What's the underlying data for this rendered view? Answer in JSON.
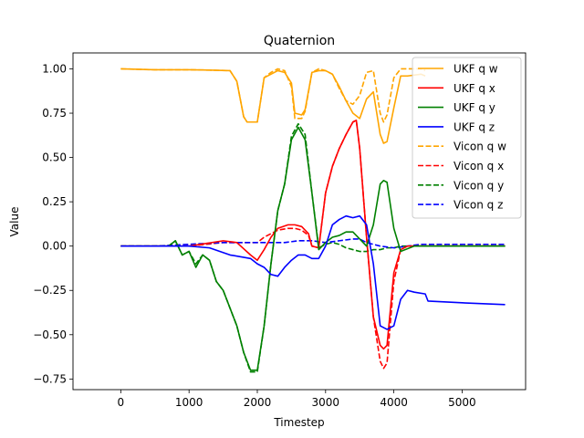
{
  "chart_data": {
    "type": "line",
    "title": "Quaternion",
    "xlabel": "Timestep",
    "ylabel": "Value",
    "xlim": [
      -700,
      5930
    ],
    "ylim": [
      -0.81,
      1.09
    ],
    "x_ticks": [
      0,
      1000,
      2000,
      3000,
      4000,
      5000
    ],
    "x_tick_labels": [
      "0",
      "1000",
      "2000",
      "3000",
      "4000",
      "5000"
    ],
    "y_ticks": [
      -0.75,
      -0.5,
      -0.25,
      0.0,
      0.25,
      0.5,
      0.75,
      1.0
    ],
    "y_tick_labels": [
      "−0.75",
      "−0.50",
      "−0.25",
      "0.00",
      "0.25",
      "0.50",
      "0.75",
      "1.00"
    ],
    "grid": false,
    "legend_position": "top-right",
    "series": [
      {
        "name": "UKF q w",
        "color": "#ffa500",
        "dash": false,
        "x": [
          0,
          500,
          1000,
          1300,
          1600,
          1700,
          1800,
          1850,
          1900,
          2000,
          2100,
          2200,
          2300,
          2400,
          2500,
          2550,
          2650,
          2700,
          2800,
          2900,
          3000,
          3100,
          3200,
          3300,
          3400,
          3500,
          3600,
          3700,
          3800,
          3850,
          3900,
          4000,
          4100,
          4200,
          4400,
          4460
        ],
        "y": [
          1.0,
          0.995,
          0.995,
          0.993,
          0.99,
          0.93,
          0.73,
          0.7,
          0.7,
          0.7,
          0.95,
          0.97,
          0.99,
          0.98,
          0.92,
          0.75,
          0.74,
          0.77,
          0.98,
          0.99,
          0.99,
          0.97,
          0.9,
          0.82,
          0.75,
          0.72,
          0.83,
          0.87,
          0.63,
          0.58,
          0.59,
          0.78,
          0.96,
          0.96,
          0.97,
          0.96
        ]
      },
      {
        "name": "UKF q x",
        "color": "#ff0000",
        "dash": false,
        "x": [
          0,
          500,
          1000,
          1500,
          1700,
          1900,
          2000,
          2100,
          2200,
          2300,
          2450,
          2550,
          2650,
          2750,
          2800,
          2900,
          3000,
          3100,
          3200,
          3300,
          3400,
          3450,
          3500,
          3600,
          3700,
          3800,
          3850,
          3900,
          4000,
          4100,
          4200,
          4400,
          4600,
          5000,
          5630
        ],
        "y": [
          0.0,
          0.0,
          0.0,
          0.03,
          0.02,
          -0.05,
          -0.08,
          -0.02,
          0.05,
          0.1,
          0.12,
          0.12,
          0.11,
          0.07,
          0.0,
          -0.01,
          0.3,
          0.45,
          0.55,
          0.63,
          0.7,
          0.71,
          0.55,
          0.05,
          -0.4,
          -0.56,
          -0.58,
          -0.56,
          -0.15,
          -0.02,
          0.0,
          0.0,
          0.0,
          0.0,
          0.0
        ]
      },
      {
        "name": "UKF q y",
        "color": "#008000",
        "dash": false,
        "x": [
          0,
          700,
          800,
          900,
          1000,
          1100,
          1200,
          1300,
          1400,
          1500,
          1600,
          1700,
          1800,
          1900,
          2000,
          2100,
          2200,
          2300,
          2400,
          2500,
          2600,
          2700,
          2800,
          2900,
          3000,
          3100,
          3200,
          3300,
          3400,
          3500,
          3600,
          3700,
          3800,
          3850,
          3900,
          4000,
          4100,
          4300,
          4450,
          4600,
          5000,
          5630
        ],
        "y": [
          0.0,
          0.0,
          0.03,
          -0.05,
          -0.03,
          -0.12,
          -0.05,
          -0.08,
          -0.2,
          -0.25,
          -0.35,
          -0.45,
          -0.6,
          -0.7,
          -0.7,
          -0.45,
          -0.1,
          0.2,
          0.35,
          0.6,
          0.67,
          0.6,
          0.3,
          -0.02,
          0.02,
          0.05,
          0.06,
          0.08,
          0.08,
          0.04,
          0.0,
          0.12,
          0.35,
          0.37,
          0.36,
          0.1,
          -0.03,
          0.0,
          0.0,
          0.0,
          0.0,
          0.0
        ]
      },
      {
        "name": "UKF q z",
        "color": "#0000ff",
        "dash": false,
        "x": [
          0,
          500,
          1000,
          1300,
          1600,
          1900,
          2000,
          2100,
          2200,
          2300,
          2400,
          2500,
          2600,
          2700,
          2800,
          2900,
          3000,
          3100,
          3200,
          3300,
          3400,
          3500,
          3600,
          3700,
          3800,
          3900,
          4000,
          4100,
          4200,
          4300,
          4460,
          4500,
          5000,
          5630
        ],
        "y": [
          0.0,
          0.0,
          0.0,
          -0.01,
          -0.05,
          -0.07,
          -0.1,
          -0.12,
          -0.16,
          -0.17,
          -0.12,
          -0.08,
          -0.05,
          -0.05,
          -0.07,
          -0.07,
          0.0,
          0.12,
          0.15,
          0.17,
          0.16,
          0.17,
          0.12,
          -0.1,
          -0.45,
          -0.47,
          -0.45,
          -0.3,
          -0.25,
          -0.26,
          -0.27,
          -0.31,
          -0.32,
          -0.33
        ]
      },
      {
        "name": "Vicon q w",
        "color": "#ffa500",
        "dash": true,
        "x": [
          0,
          500,
          1000,
          1300,
          1600,
          1700,
          1800,
          1850,
          1900,
          2000,
          2100,
          2200,
          2300,
          2400,
          2500,
          2550,
          2650,
          2700,
          2800,
          2900,
          3000,
          3100,
          3200,
          3300,
          3400,
          3500,
          3600,
          3700,
          3800,
          3850,
          3900,
          4000,
          4100,
          4200,
          4400,
          4460
        ],
        "y": [
          1.0,
          0.995,
          0.995,
          0.993,
          0.99,
          0.93,
          0.73,
          0.7,
          0.7,
          0.7,
          0.95,
          0.98,
          1.0,
          0.99,
          0.9,
          0.72,
          0.72,
          0.76,
          0.98,
          1.0,
          0.99,
          0.97,
          0.89,
          0.82,
          0.8,
          0.85,
          0.98,
          0.99,
          0.75,
          0.7,
          0.74,
          0.95,
          1.0,
          1.0,
          1.0,
          0.99
        ]
      },
      {
        "name": "Vicon q x",
        "color": "#ff0000",
        "dash": true,
        "x": [
          0,
          500,
          1000,
          1500,
          1700,
          1900,
          2000,
          2100,
          2200,
          2300,
          2450,
          2550,
          2650,
          2750,
          2800,
          2900,
          3000,
          3100,
          3200,
          3300,
          3400,
          3450,
          3500,
          3600,
          3700,
          3800,
          3850,
          3900,
          4000,
          4100,
          4200,
          4400,
          4600,
          5000,
          5630
        ],
        "y": [
          0.0,
          0.0,
          0.0,
          0.02,
          0.02,
          0.02,
          0.02,
          0.05,
          0.07,
          0.09,
          0.1,
          0.1,
          0.09,
          0.06,
          0.0,
          -0.01,
          0.3,
          0.45,
          0.55,
          0.63,
          0.7,
          0.71,
          0.55,
          0.05,
          -0.4,
          -0.65,
          -0.69,
          -0.66,
          -0.2,
          -0.02,
          0.0,
          0.0,
          0.0,
          0.0,
          0.0
        ]
      },
      {
        "name": "Vicon q y",
        "color": "#008000",
        "dash": true,
        "x": [
          0,
          700,
          800,
          900,
          1000,
          1100,
          1200,
          1300,
          1400,
          1500,
          1600,
          1700,
          1800,
          1900,
          2000,
          2100,
          2200,
          2300,
          2400,
          2500,
          2600,
          2700,
          2800,
          2900,
          3000,
          3100,
          3200,
          3300,
          3400,
          3500,
          3600,
          3700,
          3800,
          3900,
          4000,
          4100,
          4300,
          4450,
          4600,
          5000,
          5630
        ],
        "y": [
          0.0,
          0.0,
          0.03,
          -0.05,
          -0.03,
          -0.1,
          -0.05,
          -0.08,
          -0.2,
          -0.25,
          -0.35,
          -0.45,
          -0.6,
          -0.71,
          -0.71,
          -0.45,
          -0.1,
          0.2,
          0.35,
          0.62,
          0.69,
          0.63,
          0.3,
          -0.01,
          0.01,
          0.02,
          0.01,
          -0.01,
          -0.02,
          -0.03,
          -0.03,
          -0.02,
          -0.02,
          -0.01,
          -0.01,
          0.0,
          0.0,
          0.0,
          0.0,
          0.0,
          0.0
        ]
      },
      {
        "name": "Vicon q z",
        "color": "#0000ff",
        "dash": true,
        "x": [
          0,
          500,
          1000,
          1500,
          1800,
          2000,
          2200,
          2400,
          2600,
          2700,
          2800,
          3000,
          3200,
          3400,
          3500,
          3600,
          3800,
          4000,
          4200,
          4400,
          4600,
          5000,
          5630
        ],
        "y": [
          0.0,
          0.0,
          0.01,
          0.02,
          0.02,
          0.02,
          0.02,
          0.02,
          0.03,
          0.03,
          0.03,
          0.02,
          0.03,
          0.04,
          0.04,
          0.02,
          0.0,
          -0.01,
          0.0,
          0.01,
          0.01,
          0.01,
          0.01
        ]
      }
    ]
  }
}
